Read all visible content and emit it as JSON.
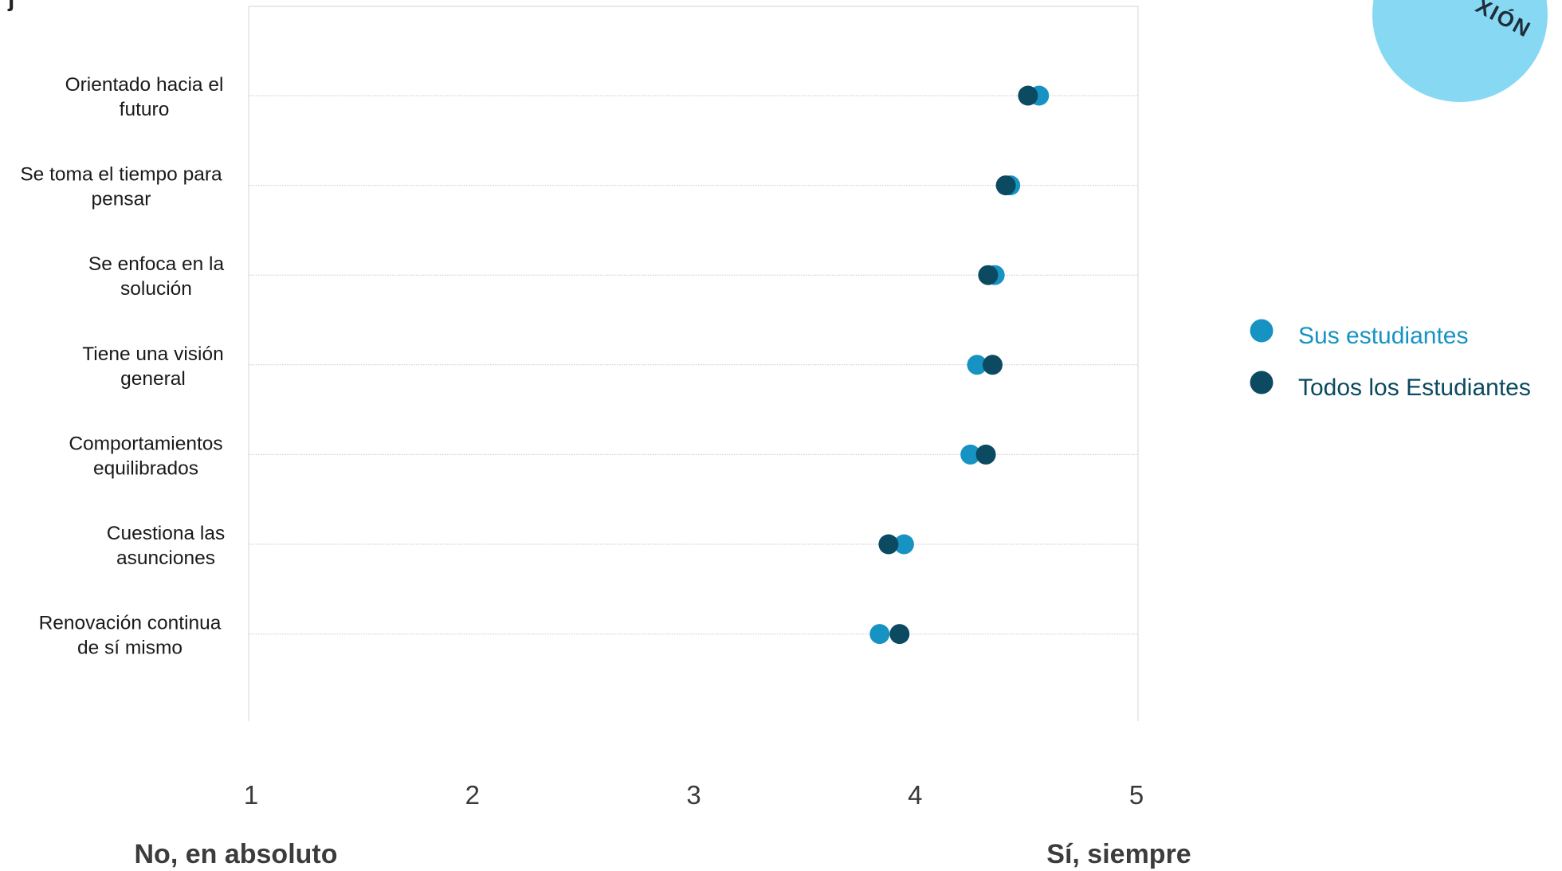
{
  "page": {
    "badge_text": "XIÓN",
    "badge_color": "#87d8f3",
    "corner_glyph": "j"
  },
  "chart_data": {
    "type": "scatter",
    "orientation": "horizontal-dot-plot",
    "title": "",
    "xlabel": "",
    "ylabel": "",
    "xlim": [
      1,
      5
    ],
    "x_ticks": [
      1,
      2,
      3,
      4,
      5
    ],
    "x_tick_labels": [
      "1",
      "2",
      "3",
      "4",
      "5"
    ],
    "scale_anchor_low": "No, en absoluto",
    "scale_anchor_high": "Sí, siempre",
    "grid": "horizontal-dotted",
    "legend_position": "right",
    "categories": [
      [
        "Orientado hacia el",
        "futuro"
      ],
      [
        "Se toma el tiempo para",
        "pensar"
      ],
      [
        "Se enfoca en la",
        "solución"
      ],
      [
        "Tiene una visión",
        "general"
      ],
      [
        "Comportamientos",
        "equilibrados"
      ],
      [
        "Cuestiona las",
        "asunciones"
      ],
      [
        "Renovación continua",
        "de sí mismo"
      ]
    ],
    "series": [
      {
        "name": "Sus estudiantes",
        "color": "#1793c3",
        "values": [
          4.56,
          4.43,
          4.36,
          4.28,
          4.25,
          3.95,
          3.84
        ]
      },
      {
        "name": "Todos los Estudiantes",
        "color": "#0b4a61",
        "values": [
          4.51,
          4.41,
          4.33,
          4.35,
          4.32,
          3.88,
          3.93
        ]
      }
    ]
  }
}
